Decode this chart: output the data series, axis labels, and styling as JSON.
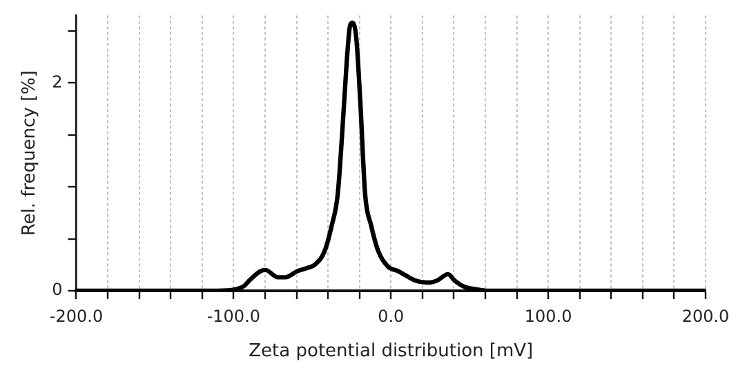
{
  "chart_data": {
    "type": "line",
    "xlabel": "Zeta potential distribution [mV]",
    "ylabel": "Rel. frequency [%]",
    "xlim": [
      -200,
      200
    ],
    "xticks": [
      {
        "value": -200,
        "label": "-200.0"
      },
      {
        "value": -180,
        "label": null
      },
      {
        "value": -160,
        "label": null
      },
      {
        "value": -140,
        "label": null
      },
      {
        "value": -120,
        "label": null
      },
      {
        "value": -100,
        "label": "-100.0"
      },
      {
        "value": -80,
        "label": null
      },
      {
        "value": -60,
        "label": null
      },
      {
        "value": -40,
        "label": null
      },
      {
        "value": -20,
        "label": null
      },
      {
        "value": 0,
        "label": "0.0"
      },
      {
        "value": 20,
        "label": null
      },
      {
        "value": 40,
        "label": null
      },
      {
        "value": 60,
        "label": null
      },
      {
        "value": 80,
        "label": null
      },
      {
        "value": 100,
        "label": "100.0"
      },
      {
        "value": 120,
        "label": null
      },
      {
        "value": 140,
        "label": null
      },
      {
        "value": 160,
        "label": null
      },
      {
        "value": 180,
        "label": null
      },
      {
        "value": 200,
        "label": "200.0"
      }
    ],
    "ylim": [
      0,
      2.65
    ],
    "yticks": [
      0,
      {
        "value": 0.5,
        "label": null
      },
      {
        "value": 1,
        "label": null
      },
      {
        "value": 1.5,
        "label": null
      },
      2,
      {
        "value": 2.5,
        "label": null
      }
    ],
    "grid": "x",
    "marker": "none",
    "line_style": "solid",
    "series": [
      {
        "color": "#000000",
        "x": [
          -200,
          -150,
          -110,
          -100,
          -93,
          -90.6,
          -82.8,
          -79.7,
          -71.9,
          -67,
          -59.4,
          -53,
          -48.5,
          -42.2,
          -37.6,
          -33.8,
          -30.7,
          -28.2,
          -26,
          -24.5,
          -22,
          -19.5,
          -16.4,
          -12.6,
          -8,
          -1.7,
          4.5,
          9.2,
          15.4,
          24.8,
          29.5,
          36.3,
          40.4,
          46.6,
          56,
          62,
          100,
          150,
          200
        ],
        "values": [
          0,
          0,
          0,
          0.01,
          0.05,
          0.09,
          0.19,
          0.2,
          0.13,
          0.13,
          0.19,
          0.22,
          0.25,
          0.38,
          0.63,
          0.93,
          1.58,
          2.18,
          2.55,
          2.58,
          2.43,
          1.83,
          0.93,
          0.63,
          0.38,
          0.23,
          0.19,
          0.15,
          0.1,
          0.08,
          0.1,
          0.16,
          0.1,
          0.04,
          0.01,
          0,
          0,
          0,
          0
        ]
      }
    ]
  }
}
